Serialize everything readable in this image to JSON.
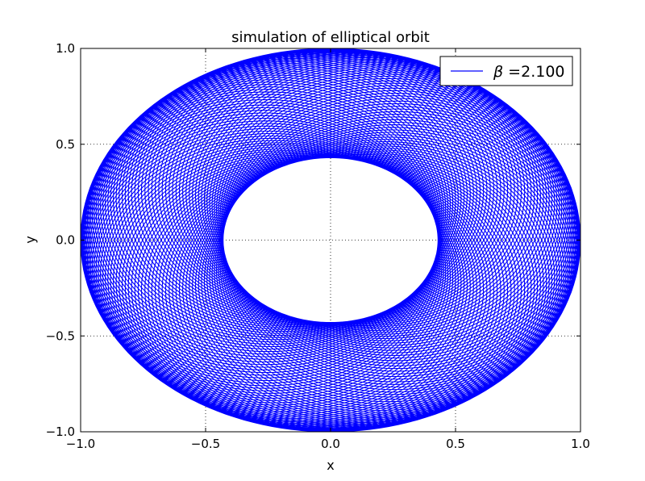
{
  "chart_data": {
    "type": "line",
    "title": "simulation of elliptical orbit",
    "xlabel": "x",
    "ylabel": "y",
    "xlim": [
      -1.0,
      1.0
    ],
    "ylim": [
      -1.0,
      1.0
    ],
    "x_ticks": [
      -1.0,
      -0.5,
      0.0,
      0.5,
      1.0
    ],
    "y_ticks": [
      -1.0,
      -0.5,
      0.0,
      0.5,
      1.0
    ],
    "x_tick_labels": [
      "−1.0",
      "−0.5",
      "0.0",
      "0.5",
      "1.0"
    ],
    "y_tick_labels": [
      "−1.0",
      "−0.5",
      "0.0",
      "0.5",
      "1.0"
    ],
    "grid": true,
    "legend_position": "top-right",
    "series": [
      {
        "name": "β =2.100",
        "name_symbol": "β",
        "name_value": " =2.100",
        "color": "#0000ff",
        "orbit": {
          "outer_x_radius": 1.0,
          "outer_y_radius": 1.0,
          "inner_x_radius": 0.43,
          "inner_y_radius": 0.43,
          "loops": 120
        }
      }
    ]
  }
}
